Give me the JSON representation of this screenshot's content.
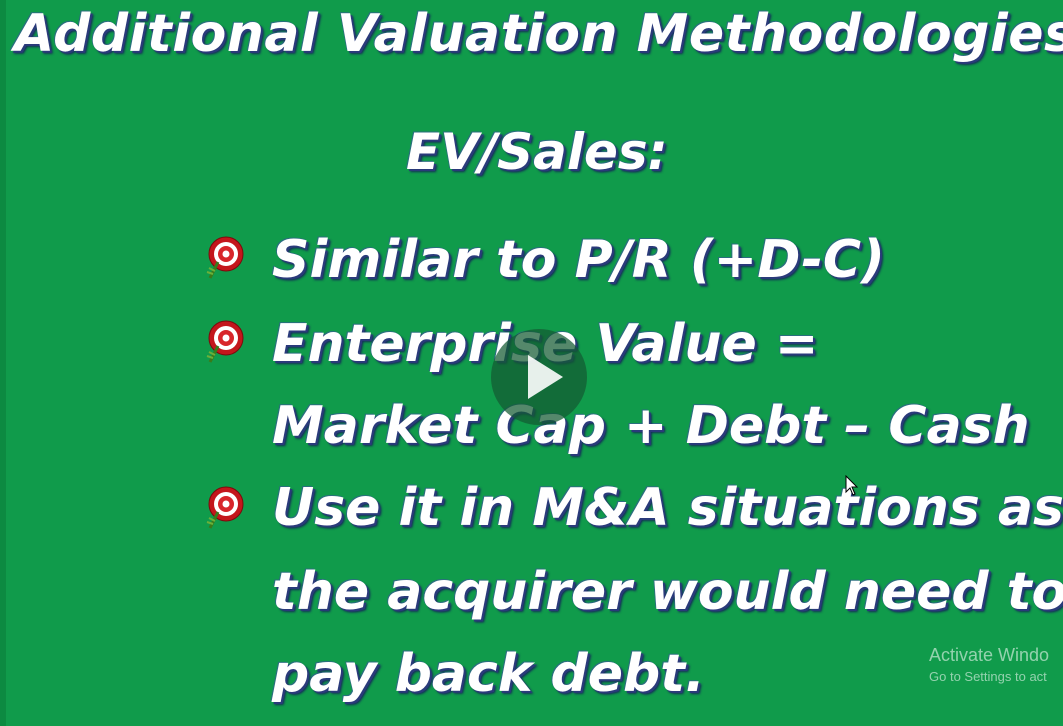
{
  "slide": {
    "title": "Additional Valuation Methodologies",
    "subtitle": "EV/Sales:",
    "bullets": [
      {
        "lines": [
          "Similar to P/R (+D-C)"
        ]
      },
      {
        "lines": [
          "Enterprise Value =",
          "Market Cap + Debt – Cash"
        ]
      },
      {
        "lines": [
          "Use it in M&A situations as",
          "the acquirer would need to",
          "pay back debt."
        ]
      }
    ],
    "background_color": "#109b4b",
    "text_color": "#ffffff",
    "bullet_icon": "target-dart-icon"
  },
  "video": {
    "play_icon": "play-icon"
  },
  "watermark": {
    "title": "Activate Windo",
    "subtitle": "Go to Settings to act"
  }
}
